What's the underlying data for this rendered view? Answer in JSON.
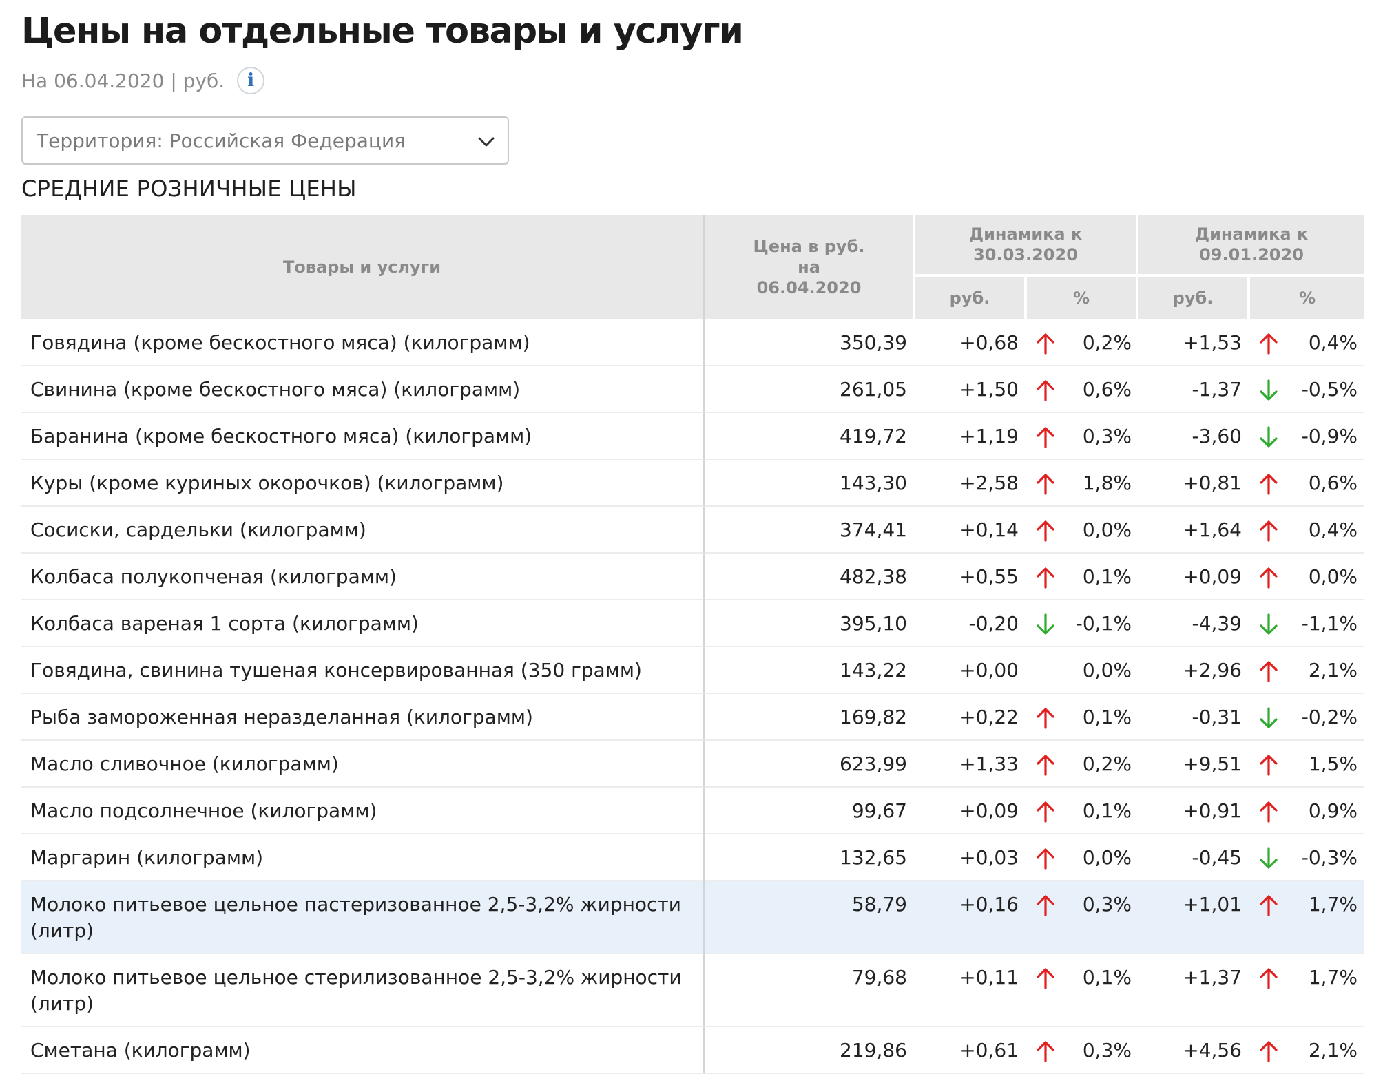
{
  "header": {
    "title": "Цены на отдельные товары и услуги",
    "subtitle": "На 06.04.2020 | руб.",
    "info_icon": "i"
  },
  "territory_select": {
    "value": "Территория: Российская  Федерация",
    "icon": "chevron-down-icon"
  },
  "section_title": "СРЕДНИЕ РОЗНИЧНЫЕ ЦЕНЫ",
  "table": {
    "headers": {
      "name": "Товары и услуги",
      "price": "Цена в руб. на 06.04.2020",
      "dyn1": "Динамика к 30.03.2020",
      "dyn2": "Динамика к 09.01.2020",
      "rub": "руб.",
      "pct": "%"
    },
    "colors": {
      "up": "#e02020",
      "down": "#2eaa2e",
      "highlight": "#e8f1f9"
    },
    "rows": [
      {
        "name": "Говядина (кроме бескостного мяса) (килограмм)",
        "price": "350,39",
        "d1_rub": "+0,68",
        "d1_pct": "0,2%",
        "d1_dir": "up",
        "d2_rub": "+1,53",
        "d2_pct": "0,4%",
        "d2_dir": "up"
      },
      {
        "name": "Свинина (кроме бескостного мяса) (килограмм)",
        "price": "261,05",
        "d1_rub": "+1,50",
        "d1_pct": "0,6%",
        "d1_dir": "up",
        "d2_rub": "-1,37",
        "d2_pct": "-0,5%",
        "d2_dir": "down"
      },
      {
        "name": "Баранина (кроме бескостного мяса) (килограмм)",
        "price": "419,72",
        "d1_rub": "+1,19",
        "d1_pct": "0,3%",
        "d1_dir": "up",
        "d2_rub": "-3,60",
        "d2_pct": "-0,9%",
        "d2_dir": "down"
      },
      {
        "name": "Куры (кроме куриных окорочков) (килограмм)",
        "price": "143,30",
        "d1_rub": "+2,58",
        "d1_pct": "1,8%",
        "d1_dir": "up",
        "d2_rub": "+0,81",
        "d2_pct": "0,6%",
        "d2_dir": "up"
      },
      {
        "name": "Сосиски, сардельки (килограмм)",
        "price": "374,41",
        "d1_rub": "+0,14",
        "d1_pct": "0,0%",
        "d1_dir": "up",
        "d2_rub": "+1,64",
        "d2_pct": "0,4%",
        "d2_dir": "up"
      },
      {
        "name": "Колбаса полукопченая (килограмм)",
        "price": "482,38",
        "d1_rub": "+0,55",
        "d1_pct": "0,1%",
        "d1_dir": "up",
        "d2_rub": "+0,09",
        "d2_pct": "0,0%",
        "d2_dir": "up"
      },
      {
        "name": "Колбаса вареная 1 сорта (килограмм)",
        "price": "395,10",
        "d1_rub": "-0,20",
        "d1_pct": "-0,1%",
        "d1_dir": "down",
        "d2_rub": "-4,39",
        "d2_pct": "-1,1%",
        "d2_dir": "down"
      },
      {
        "name": "Говядина, свинина тушеная консервированная (350 грамм)",
        "price": "143,22",
        "d1_rub": "+0,00",
        "d1_pct": "0,0%",
        "d1_dir": "none",
        "d2_rub": "+2,96",
        "d2_pct": "2,1%",
        "d2_dir": "up"
      },
      {
        "name": "Рыба замороженная неразделанная (килограмм)",
        "price": "169,82",
        "d1_rub": "+0,22",
        "d1_pct": "0,1%",
        "d1_dir": "up",
        "d2_rub": "-0,31",
        "d2_pct": "-0,2%",
        "d2_dir": "down"
      },
      {
        "name": "Масло сливочное (килограмм)",
        "price": "623,99",
        "d1_rub": "+1,33",
        "d1_pct": "0,2%",
        "d1_dir": "up",
        "d2_rub": "+9,51",
        "d2_pct": "1,5%",
        "d2_dir": "up"
      },
      {
        "name": "Масло подсолнечное (килограмм)",
        "price": "99,67",
        "d1_rub": "+0,09",
        "d1_pct": "0,1%",
        "d1_dir": "up",
        "d2_rub": "+0,91",
        "d2_pct": "0,9%",
        "d2_dir": "up"
      },
      {
        "name": "Маргарин (килограмм)",
        "price": "132,65",
        "d1_rub": "+0,03",
        "d1_pct": "0,0%",
        "d1_dir": "up",
        "d2_rub": "-0,45",
        "d2_pct": "-0,3%",
        "d2_dir": "down"
      },
      {
        "name": "Молоко питьевое цельное пастеризованное 2,5-3,2% жирности (литр)",
        "price": "58,79",
        "d1_rub": "+0,16",
        "d1_pct": "0,3%",
        "d1_dir": "up",
        "d2_rub": "+1,01",
        "d2_pct": "1,7%",
        "d2_dir": "up",
        "highlighted": true
      },
      {
        "name": "Молоко питьевое цельное стерилизованное 2,5-3,2% жирности (литр)",
        "price": "79,68",
        "d1_rub": "+0,11",
        "d1_pct": "0,1%",
        "d1_dir": "up",
        "d2_rub": "+1,37",
        "d2_pct": "1,7%",
        "d2_dir": "up"
      },
      {
        "name": "Сметана (килограмм)",
        "price": "219,86",
        "d1_rub": "+0,61",
        "d1_pct": "0,3%",
        "d1_dir": "up",
        "d2_rub": "+4,56",
        "d2_pct": "2,1%",
        "d2_dir": "up"
      }
    ]
  }
}
